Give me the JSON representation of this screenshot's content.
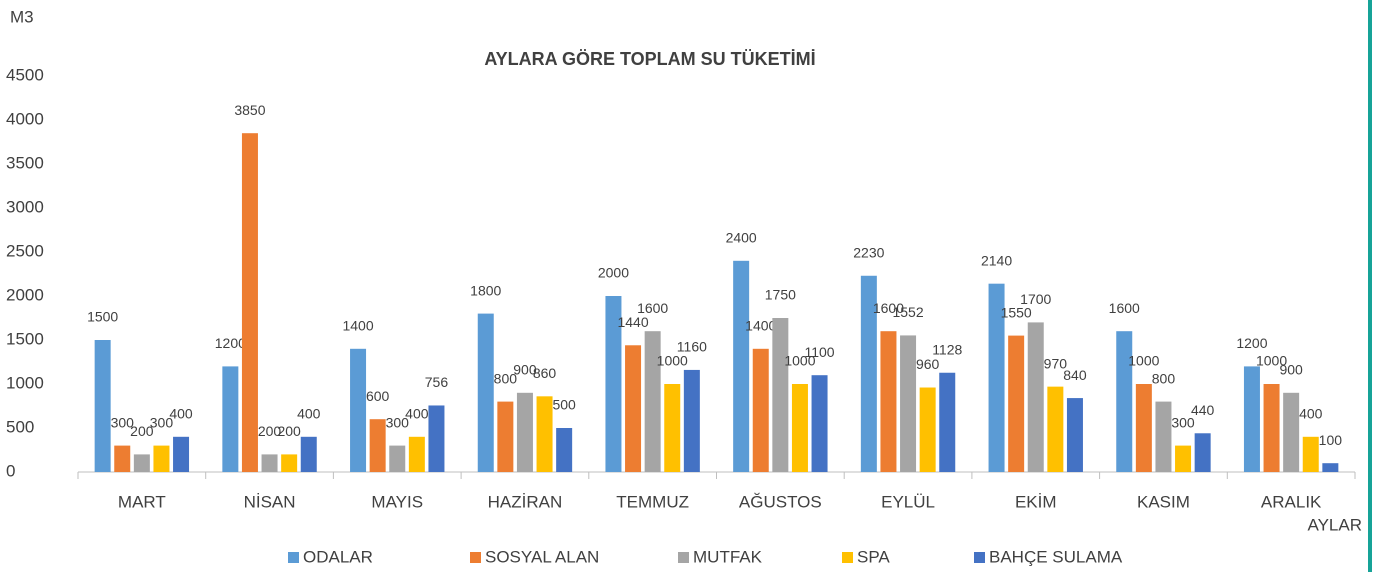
{
  "chart_data": {
    "type": "bar",
    "title": "AYLARA GÖRE TOPLAM SU TÜKETİMİ",
    "y_label": "M3",
    "x_label": "AYLAR",
    "categories": [
      "MART",
      "NİSAN",
      "MAYIS",
      "HAZİRAN",
      "TEMMUZ",
      "AĞUSTOS",
      "EYLÜL",
      "EKİM",
      "KASIM",
      "ARALIK"
    ],
    "series": [
      {
        "name": "ODALAR",
        "color": "#5b9bd5",
        "values": [
          1500,
          1200,
          1400,
          1800,
          2000,
          2400,
          2230,
          2140,
          1600,
          1200
        ]
      },
      {
        "name": "SOSYAL ALAN",
        "color": "#ed7d31",
        "values": [
          300,
          3850,
          600,
          800,
          1440,
          1400,
          1600,
          1550,
          1000,
          1000
        ]
      },
      {
        "name": "MUTFAK",
        "color": "#a5a5a5",
        "values": [
          200,
          200,
          300,
          900,
          1600,
          1750,
          1552,
          1700,
          800,
          900
        ]
      },
      {
        "name": "SPA",
        "color": "#ffc000",
        "values": [
          300,
          200,
          400,
          860,
          1000,
          1000,
          960,
          970,
          300,
          400
        ]
      },
      {
        "name": "BAHÇE SULAMA",
        "color": "#4472c4",
        "values": [
          400,
          400,
          756,
          500,
          1160,
          1100,
          1128,
          840,
          440,
          100
        ]
      }
    ],
    "ylim": [
      0,
      4500
    ],
    "yticks": [
      0,
      500,
      1000,
      1500,
      2000,
      2500,
      3000,
      3500,
      4000,
      4500
    ],
    "grid": false,
    "legend": "bottom"
  }
}
